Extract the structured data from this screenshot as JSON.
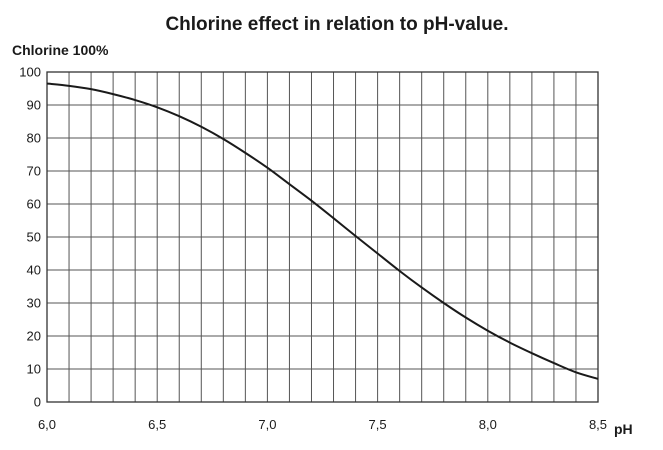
{
  "chart_data": {
    "type": "line",
    "title": "Chlorine effect in relation to pH-value.",
    "ylabel": "Chlorine 100%",
    "xlabel": "pH",
    "xlim": [
      6.0,
      8.5
    ],
    "ylim": [
      0,
      100
    ],
    "x_ticks": [
      6.0,
      6.5,
      7.0,
      7.5,
      8.0,
      8.5
    ],
    "x_tick_labels": [
      "6,0",
      "6,5",
      "7,0",
      "7,5",
      "8,0",
      "8,5"
    ],
    "y_ticks": [
      0,
      10,
      20,
      30,
      40,
      50,
      60,
      70,
      80,
      90,
      100
    ],
    "y_tick_labels": [
      "0",
      "10",
      "20",
      "30",
      "40",
      "50",
      "60",
      "70",
      "80",
      "90",
      "100"
    ],
    "x_grid_step": 0.1,
    "y_grid_step": 10,
    "grid": true,
    "legend": "none",
    "series": [
      {
        "x": [
          6.0,
          6.1,
          6.2,
          6.3,
          6.4,
          6.5,
          6.6,
          6.7,
          6.8,
          6.9,
          7.0,
          7.1,
          7.2,
          7.3,
          7.4,
          7.5,
          7.6,
          7.7,
          7.8,
          7.9,
          8.0,
          8.1,
          8.2,
          8.3,
          8.4,
          8.5
        ],
        "y": [
          96.5,
          95.8,
          94.8,
          93.3,
          91.5,
          89.3,
          86.6,
          83.4,
          79.7,
          75.5,
          71.0,
          66.0,
          61.0,
          55.7,
          50.3,
          45.0,
          39.7,
          34.7,
          30.0,
          25.6,
          21.6,
          18.0,
          14.8,
          11.8,
          9.0,
          7.0
        ]
      }
    ],
    "colors": {
      "curve": "#1a1a1a",
      "grid": "#555555",
      "frame": "#333333",
      "text": "#1a1a1a"
    }
  }
}
